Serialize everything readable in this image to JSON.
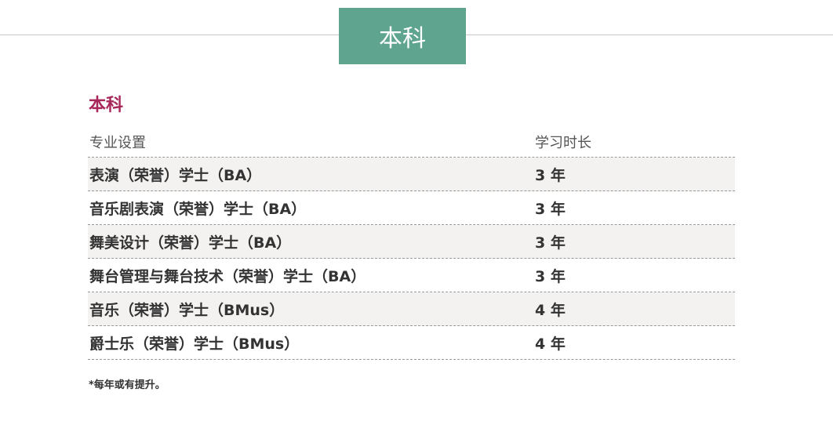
{
  "banner": {
    "label": "本科"
  },
  "section": {
    "title": "本科"
  },
  "table": {
    "headers": [
      "专业设置",
      "学习时长"
    ],
    "rows": [
      {
        "program": "表演（荣誉）学士（BA）",
        "duration": "3 年"
      },
      {
        "program": "音乐剧表演（荣誉）学士（BA）",
        "duration": "3 年"
      },
      {
        "program": "舞美设计（荣誉）学士（BA）",
        "duration": "3 年"
      },
      {
        "program": "舞台管理与舞台技术（荣誉）学士（BA）",
        "duration": "3 年"
      },
      {
        "program": "音乐（荣誉）学士（BMus）",
        "duration": "4 年"
      },
      {
        "program": "爵士乐（荣誉）学士（BMus）",
        "duration": "4 年"
      }
    ]
  },
  "note": "*每年或有提升。",
  "colors": {
    "banner": "#5fa48f",
    "title": "#a8285a"
  }
}
